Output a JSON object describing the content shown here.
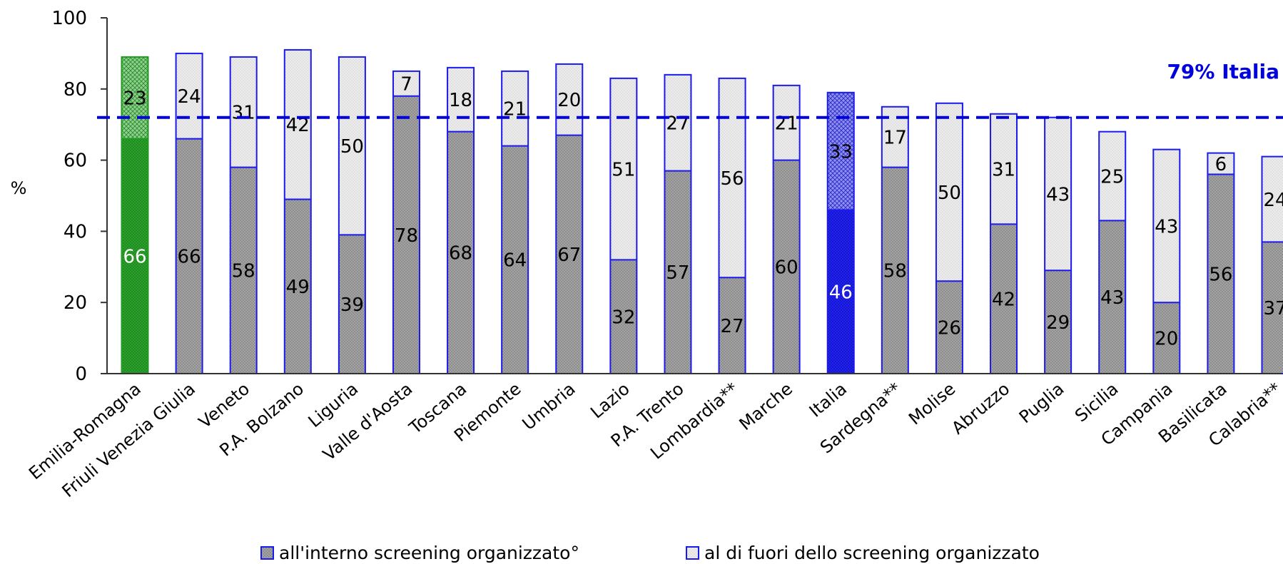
{
  "chart_data": {
    "type": "bar",
    "stacked": true,
    "ylabel": "%",
    "ylim": [
      0,
      100
    ],
    "yticks": [
      0,
      20,
      40,
      60,
      80,
      100
    ],
    "grid": false,
    "legend_position": "bottom",
    "categories": [
      "Emilia-Romagna",
      "Friuli Venezia Giulia",
      "Veneto",
      "P.A. Bolzano",
      "Liguria",
      "Valle d'Aosta",
      "Toscana",
      "Piemonte",
      "Umbria",
      "Lazio",
      "P.A. Trento",
      "Lombardia**",
      "Marche",
      "Italia",
      "Sardegna**",
      "Molise",
      "Abruzzo",
      "Puglia",
      "Sicilia",
      "Campania",
      "Basilicata",
      "Calabria**"
    ],
    "series": [
      {
        "name": "all'interno screening organizzato°",
        "values": [
          66,
          66,
          58,
          49,
          39,
          78,
          68,
          64,
          67,
          32,
          57,
          27,
          60,
          46,
          58,
          26,
          42,
          29,
          43,
          20,
          56,
          37
        ]
      },
      {
        "name": "al di fuori dello screening organizzato",
        "values": [
          23,
          24,
          31,
          42,
          50,
          7,
          18,
          21,
          20,
          51,
          27,
          56,
          21,
          33,
          17,
          50,
          31,
          43,
          25,
          43,
          6,
          24
        ]
      }
    ],
    "reference_line": {
      "value": 79,
      "label": "79% Italia",
      "color": "#0000dd"
    },
    "highlights": {
      "Emilia-Romagna": "#1f9a1f",
      "Italia": "#1a1aee"
    },
    "colors": {
      "inside": "#9a9a9a",
      "outside": "#e6e6e6",
      "border": "#1a1aee",
      "axis": "#333333"
    }
  }
}
